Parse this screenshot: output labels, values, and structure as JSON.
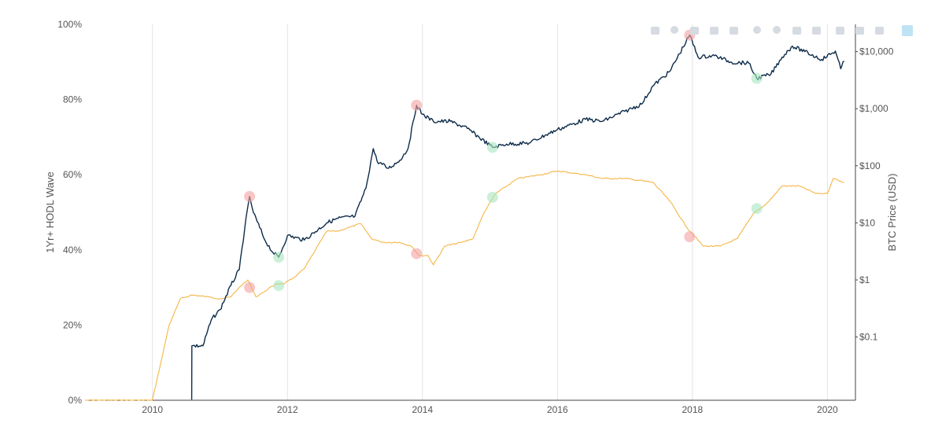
{
  "chart_data": {
    "type": "line",
    "title": "",
    "x_axis": {
      "type": "date",
      "range": [
        "2009-01-01",
        "2020-06-01"
      ],
      "tick_labels": [
        "2010",
        "2012",
        "2014",
        "2016",
        "2018",
        "2020"
      ],
      "gridlines": true
    },
    "y_left": {
      "label": "1Yr+ HODL Wave",
      "range": [
        0,
        100
      ],
      "unit": "%",
      "tick_values": [
        0,
        20,
        40,
        60,
        80,
        100
      ],
      "tick_labels": [
        "0%",
        "20%",
        "40%",
        "60%",
        "80%",
        "100%"
      ]
    },
    "y_right": {
      "label": "BTC Price (USD)",
      "scale": "log",
      "range": [
        0.0078,
        30000
      ],
      "tick_values": [
        0.1,
        1,
        10,
        100,
        1000,
        10000
      ],
      "tick_labels": [
        "$0.1",
        "$1",
        "$10",
        "$100",
        "$1,000",
        "$10,000"
      ]
    },
    "series": [
      {
        "axis": "left",
        "color": "#f5b546",
        "points": [
          [
            "2009-01-01",
            0
          ],
          [
            "2009-12-31",
            0
          ],
          [
            "2010-02-15",
            10
          ],
          [
            "2010-04-01",
            20
          ],
          [
            "2010-06-01",
            27
          ],
          [
            "2010-08-01",
            28
          ],
          [
            "2010-11-01",
            27.5
          ],
          [
            "2011-01-01",
            27
          ],
          [
            "2011-03-01",
            27.5
          ],
          [
            "2011-04-15",
            30
          ],
          [
            "2011-06-01",
            32
          ],
          [
            "2011-07-15",
            27.5
          ],
          [
            "2011-09-01",
            29
          ],
          [
            "2011-11-01",
            31
          ],
          [
            "2011-12-15",
            31
          ],
          [
            "2012-02-01",
            32.5
          ],
          [
            "2012-04-01",
            35
          ],
          [
            "2012-06-01",
            40
          ],
          [
            "2012-08-01",
            45
          ],
          [
            "2012-10-01",
            45
          ],
          [
            "2012-12-01",
            46
          ],
          [
            "2013-02-01",
            47
          ],
          [
            "2013-04-01",
            43
          ],
          [
            "2013-06-01",
            42
          ],
          [
            "2013-09-01",
            42
          ],
          [
            "2013-11-01",
            41
          ],
          [
            "2013-12-15",
            38.5
          ],
          [
            "2014-02-01",
            38.5
          ],
          [
            "2014-03-01",
            36
          ],
          [
            "2014-05-01",
            41
          ],
          [
            "2014-08-01",
            42
          ],
          [
            "2014-10-01",
            43
          ],
          [
            "2014-12-01",
            50
          ],
          [
            "2015-02-01",
            55
          ],
          [
            "2015-06-01",
            59
          ],
          [
            "2015-10-01",
            60
          ],
          [
            "2016-01-01",
            61
          ],
          [
            "2016-06-01",
            60
          ],
          [
            "2016-09-01",
            59
          ],
          [
            "2017-01-01",
            59
          ],
          [
            "2017-06-01",
            58
          ],
          [
            "2017-09-01",
            53
          ],
          [
            "2017-12-01",
            46
          ],
          [
            "2018-03-01",
            41
          ],
          [
            "2018-06-01",
            41
          ],
          [
            "2018-09-01",
            43
          ],
          [
            "2018-12-01",
            50
          ],
          [
            "2019-02-01",
            52
          ],
          [
            "2019-05-01",
            57
          ],
          [
            "2019-08-01",
            57
          ],
          [
            "2019-11-01",
            55
          ],
          [
            "2020-01-01",
            55
          ],
          [
            "2020-02-01",
            59
          ],
          [
            "2020-04-01",
            58
          ]
        ]
      },
      {
        "axis": "right",
        "color": "#0d2c4a",
        "points": [
          [
            "2010-08-01",
            0.008
          ],
          [
            "2010-08-02",
            0.07
          ],
          [
            "2010-10-01",
            0.07
          ],
          [
            "2010-11-15",
            0.2
          ],
          [
            "2011-01-01",
            0.3
          ],
          [
            "2011-03-01",
            0.8
          ],
          [
            "2011-04-15",
            1.5
          ],
          [
            "2011-05-15",
            8
          ],
          [
            "2011-06-10",
            29
          ],
          [
            "2011-07-01",
            15
          ],
          [
            "2011-09-01",
            5
          ],
          [
            "2011-10-15",
            3
          ],
          [
            "2011-11-15",
            2.5
          ],
          [
            "2012-01-01",
            6
          ],
          [
            "2012-04-01",
            5
          ],
          [
            "2012-08-01",
            10
          ],
          [
            "2012-10-01",
            12
          ],
          [
            "2013-01-01",
            13
          ],
          [
            "2013-03-01",
            40
          ],
          [
            "2013-04-10",
            200
          ],
          [
            "2013-05-01",
            120
          ],
          [
            "2013-07-01",
            90
          ],
          [
            "2013-09-01",
            125
          ],
          [
            "2013-10-15",
            200
          ],
          [
            "2013-11-30",
            1150
          ],
          [
            "2014-01-01",
            800
          ],
          [
            "2014-03-01",
            600
          ],
          [
            "2014-06-01",
            600
          ],
          [
            "2014-09-01",
            450
          ],
          [
            "2015-01-15",
            210
          ],
          [
            "2015-04-01",
            240
          ],
          [
            "2015-08-01",
            250
          ],
          [
            "2015-11-01",
            350
          ],
          [
            "2016-01-01",
            430
          ],
          [
            "2016-06-01",
            650
          ],
          [
            "2016-09-01",
            600
          ],
          [
            "2017-01-01",
            900
          ],
          [
            "2017-04-01",
            1200
          ],
          [
            "2017-06-01",
            2500
          ],
          [
            "2017-09-01",
            4500
          ],
          [
            "2017-12-17",
            19500
          ],
          [
            "2018-02-01",
            8000
          ],
          [
            "2018-05-01",
            8500
          ],
          [
            "2018-08-01",
            6500
          ],
          [
            "2018-11-01",
            6300
          ],
          [
            "2018-12-15",
            3400
          ],
          [
            "2019-03-01",
            4000
          ],
          [
            "2019-05-01",
            8000
          ],
          [
            "2019-06-26",
            12500
          ],
          [
            "2019-09-01",
            10000
          ],
          [
            "2019-12-01",
            7300
          ],
          [
            "2020-02-13",
            10200
          ],
          [
            "2020-03-13",
            5000
          ],
          [
            "2020-04-01",
            6800
          ]
        ]
      }
    ],
    "markers": [
      {
        "axis": "left",
        "x": "2011-06-10",
        "y": 30,
        "color": "#f4a0a0"
      },
      {
        "axis": "left",
        "x": "2011-11-15",
        "y": 30.5,
        "color": "#a8e6c0"
      },
      {
        "axis": "left",
        "x": "2013-11-30",
        "y": 39,
        "color": "#f4a0a0"
      },
      {
        "axis": "left",
        "x": "2015-01-15",
        "y": 54,
        "color": "#a8e6c0"
      },
      {
        "axis": "left",
        "x": "2017-12-17",
        "y": 43.5,
        "color": "#f4a0a0"
      },
      {
        "axis": "left",
        "x": "2018-12-15",
        "y": 51,
        "color": "#a8e6c0"
      },
      {
        "axis": "right",
        "x": "2011-06-10",
        "y": 29,
        "color": "#f4a0a0"
      },
      {
        "axis": "right",
        "x": "2011-11-15",
        "y": 2.5,
        "color": "#a8e6c0"
      },
      {
        "axis": "right",
        "x": "2013-11-30",
        "y": 1150,
        "color": "#f4a0a0"
      },
      {
        "axis": "right",
        "x": "2015-01-15",
        "y": 210,
        "color": "#a8e6c0"
      },
      {
        "axis": "right",
        "x": "2017-12-17",
        "y": 19500,
        "color": "#f4a0a0"
      },
      {
        "axis": "right",
        "x": "2018-12-15",
        "y": 3400,
        "color": "#a8e6c0"
      }
    ]
  },
  "toolbar": {
    "icons": [
      "camera-icon",
      "zoom-icon",
      "pan-icon",
      "box-select-icon",
      "lasso-select-icon",
      "zoom-in-icon",
      "zoom-out-icon",
      "autoscale-icon",
      "reset-axes-icon",
      "spike-lines-icon",
      "hover-closest-icon",
      "hover-compare-icon",
      "plotly-logo-icon"
    ]
  }
}
